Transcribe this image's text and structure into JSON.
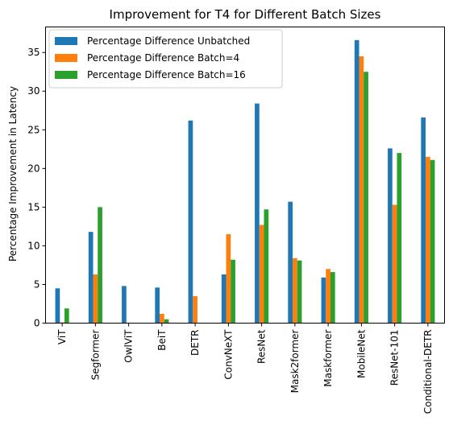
{
  "chart_data": {
    "type": "bar",
    "title": "Improvement for T4 for Different Batch Sizes",
    "xlabel": "",
    "ylabel": "Percentage Improvement in Latency",
    "ylim": [
      0,
      38.3
    ],
    "yticks": [
      0,
      5,
      10,
      15,
      20,
      25,
      30,
      35
    ],
    "grid": false,
    "legend_position": "top-left",
    "categories": [
      "ViT",
      "Segformer",
      "OwlViT",
      "BeiT",
      "DETR",
      "ConvNeXT",
      "ResNet",
      "Mask2former",
      "Maskformer",
      "MobileNet",
      "ResNet-101",
      "Conditional-DETR"
    ],
    "series": [
      {
        "name": "Percentage Difference Unbatched",
        "color": "#1f77b4",
        "values": [
          4.5,
          11.8,
          4.8,
          4.6,
          26.2,
          6.3,
          28.4,
          15.7,
          5.9,
          36.6,
          22.6,
          26.6
        ]
      },
      {
        "name": "Percentage Difference Batch=4",
        "color": "#ff7f0e",
        "values": [
          0.1,
          6.3,
          0,
          1.2,
          3.5,
          11.5,
          12.7,
          8.4,
          7.0,
          34.5,
          15.3,
          21.5
        ]
      },
      {
        "name": "Percentage Difference Batch=16",
        "color": "#2ca02c",
        "values": [
          1.9,
          15.0,
          0,
          0.5,
          0,
          8.2,
          14.7,
          8.1,
          6.6,
          32.5,
          22.0,
          21.1
        ]
      }
    ]
  }
}
